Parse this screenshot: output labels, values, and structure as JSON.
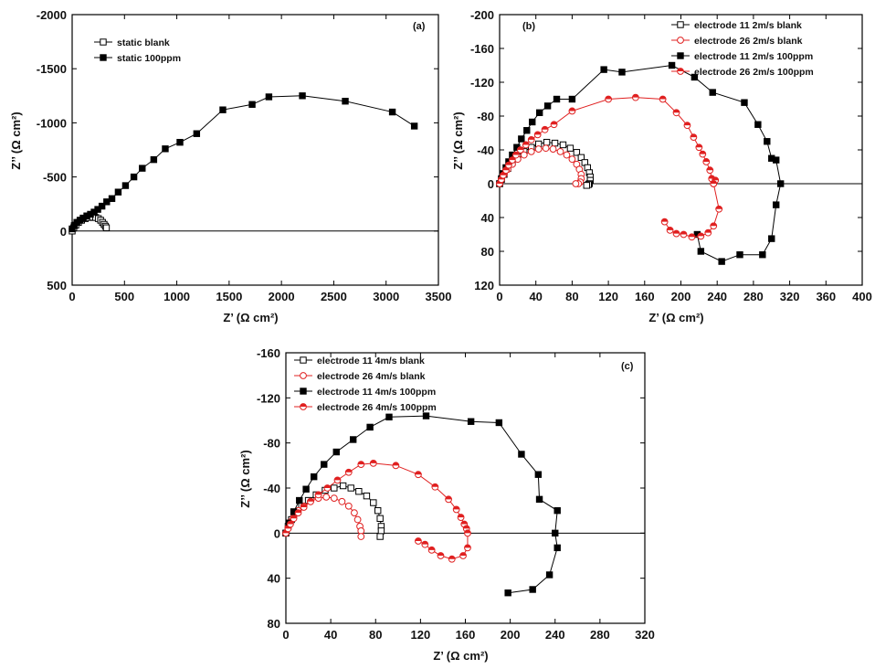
{
  "figure": {
    "background": "#ffffff",
    "axis_color": "#000000"
  },
  "chart_data": [
    {
      "id": "a",
      "type": "line",
      "panel_label": "(a)",
      "xlabel": "Z’ (Ω cm²)",
      "ylabel": "Z’’ (Ω cm²)",
      "xlim": [
        0,
        3500
      ],
      "ylim": [
        -2000,
        500
      ],
      "y_inverted": true,
      "xticks": [
        0,
        500,
        1000,
        1500,
        2000,
        2500,
        3000,
        3500
      ],
      "yticks": [
        -2000,
        -1500,
        -1000,
        -500,
        0,
        500
      ],
      "zero_line": true,
      "legend_position": "top-left",
      "series": [
        {
          "name": "static blank",
          "color": "#000000",
          "marker": "square-open",
          "x": [
            0,
            15,
            35,
            60,
            90,
            125,
            160,
            195,
            225,
            250,
            272,
            290,
            305,
            318,
            327
          ],
          "y": [
            0,
            -30,
            -55,
            -80,
            -100,
            -115,
            -125,
            -128,
            -125,
            -115,
            -100,
            -80,
            -62,
            -45,
            -30
          ]
        },
        {
          "name": "static 100ppm",
          "color": "#000000",
          "marker": "square-filled",
          "x": [
            0,
            20,
            45,
            75,
            105,
            140,
            175,
            210,
            245,
            285,
            330,
            380,
            440,
            510,
            590,
            670,
            780,
            890,
            1030,
            1190,
            1440,
            1720,
            1880,
            2200,
            2610,
            3060,
            3270
          ],
          "y": [
            -20,
            -50,
            -80,
            -100,
            -120,
            -140,
            -155,
            -175,
            -200,
            -230,
            -270,
            -300,
            -360,
            -420,
            -500,
            -580,
            -660,
            -760,
            -820,
            -900,
            -1120,
            -1170,
            -1240,
            -1250,
            -1200,
            -1100,
            -970
          ]
        }
      ]
    },
    {
      "id": "b",
      "type": "line",
      "panel_label": "(b)",
      "xlabel": "Z’ (Ω cm²)",
      "ylabel": "Z’’ (Ω cm²)",
      "xlim": [
        0,
        400
      ],
      "ylim": [
        -200,
        120
      ],
      "y_inverted": true,
      "xticks": [
        0,
        40,
        80,
        120,
        160,
        200,
        240,
        280,
        320,
        360,
        400
      ],
      "yticks": [
        -200,
        -160,
        -120,
        -80,
        -40,
        0,
        40,
        80,
        120
      ],
      "zero_line": true,
      "legend_position": "top-right",
      "series": [
        {
          "name": "electrode 11 2m/s blank",
          "color": "#000000",
          "marker": "square-open",
          "x": [
            0,
            2,
            5,
            9,
            14,
            20,
            27,
            35,
            43,
            52,
            61,
            70,
            78,
            85,
            90,
            94,
            97,
            99,
            100,
            100,
            99,
            98,
            96
          ],
          "y": [
            0,
            -5,
            -11,
            -18,
            -25,
            -32,
            -38,
            -43,
            -47,
            -49,
            -48,
            -46,
            -42,
            -37,
            -31,
            -25,
            -19,
            -13,
            -8,
            -4,
            0,
            1,
            2
          ]
        },
        {
          "name": "electrode 26 2m/s  blank",
          "color": "#e02020",
          "marker": "circle-open",
          "x": [
            0,
            2,
            5,
            9,
            14,
            20,
            27,
            35,
            43,
            51,
            59,
            67,
            74,
            80,
            85,
            88,
            90,
            90,
            89,
            87,
            84
          ],
          "y": [
            0,
            -5,
            -11,
            -17,
            -23,
            -29,
            -34,
            -38,
            -41,
            -42,
            -41,
            -38,
            -34,
            -29,
            -23,
            -17,
            -11,
            -6,
            -2,
            0,
            0
          ]
        },
        {
          "name": "electrode 11 2m/s 100ppm",
          "color": "#000000",
          "marker": "square-filled",
          "x": [
            0,
            2,
            4,
            7,
            10,
            14,
            19,
            24,
            30,
            36,
            44,
            53,
            63,
            80,
            115,
            135,
            190,
            215,
            235,
            270,
            285,
            295,
            300,
            305,
            310,
            305,
            300,
            290,
            265,
            245,
            222,
            218
          ],
          "y": [
            0,
            -6,
            -12,
            -19,
            -26,
            -34,
            -43,
            -53,
            -63,
            -73,
            -84,
            -92,
            -100,
            -100,
            -135,
            -132,
            -140,
            -126,
            -108,
            -96,
            -70,
            -50,
            -30,
            -28,
            0,
            25,
            65,
            84,
            84,
            92,
            80,
            60
          ]
        },
        {
          "name": "electrode 26 2m/s 100ppm",
          "color": "#e02020",
          "marker": "circle-halffilled",
          "x": [
            0,
            2,
            4,
            7,
            10,
            14,
            18,
            23,
            29,
            35,
            42,
            50,
            60,
            80,
            120,
            150,
            180,
            195,
            207,
            214,
            220,
            224,
            228,
            232,
            234,
            236,
            238,
            236,
            242,
            236,
            230,
            222,
            212,
            203,
            195,
            188,
            182
          ],
          "y": [
            0,
            -5,
            -10,
            -16,
            -22,
            -28,
            -34,
            -40,
            -46,
            -52,
            -58,
            -64,
            -70,
            -86,
            -100,
            -102,
            -100,
            -84,
            -69,
            -55,
            -43,
            -35,
            -26,
            -16,
            -6,
            0,
            -4,
            0,
            30,
            50,
            58,
            62,
            63,
            60,
            59,
            55,
            45
          ]
        }
      ]
    },
    {
      "id": "c",
      "type": "line",
      "panel_label": "(c)",
      "xlabel": "Z’ (Ω cm²)",
      "ylabel": "Z’’ (Ω cm²)",
      "xlim": [
        0,
        320
      ],
      "ylim": [
        -160,
        80
      ],
      "y_inverted": true,
      "xticks": [
        0,
        40,
        80,
        120,
        160,
        200,
        240,
        280,
        320
      ],
      "yticks": [
        -160,
        -120,
        -80,
        -40,
        0,
        40,
        80
      ],
      "zero_line": true,
      "legend_position": "top-left",
      "series": [
        {
          "name": "electrode 11 4m/s blank",
          "color": "#000000",
          "marker": "square-open",
          "x": [
            0,
            2,
            5,
            9,
            14,
            20,
            27,
            35,
            43,
            51,
            58,
            65,
            72,
            78,
            82,
            84,
            85,
            85,
            84
          ],
          "y": [
            0,
            -6,
            -12,
            -18,
            -24,
            -29,
            -34,
            -38,
            -40,
            -42,
            -40,
            -37,
            -33,
            -27,
            -20,
            -13,
            -6,
            -2,
            3
          ]
        },
        {
          "name": "electrode 26 4m/s blank",
          "color": "#e02020",
          "marker": "circle-open",
          "x": [
            0,
            2,
            4,
            7,
            11,
            16,
            22,
            29,
            36,
            43,
            50,
            56,
            61,
            64,
            66,
            67,
            67
          ],
          "y": [
            0,
            -5,
            -10,
            -15,
            -20,
            -24,
            -28,
            -31,
            -32,
            -31,
            -28,
            -24,
            -18,
            -12,
            -6,
            -2,
            3
          ]
        },
        {
          "name": "electrode 11 4m/s 100ppm",
          "color": "#000000",
          "marker": "square-filled",
          "x": [
            0,
            3,
            7,
            12,
            18,
            25,
            34,
            45,
            60,
            75,
            92,
            125,
            165,
            190,
            210,
            225,
            226,
            242,
            240,
            242,
            235,
            220,
            198
          ],
          "y": [
            0,
            -9,
            -19,
            -29,
            -39,
            -50,
            -61,
            -72,
            -83,
            -94,
            -103,
            -104,
            -99,
            -98,
            -70,
            -52,
            -30,
            -20,
            0,
            13,
            37,
            50,
            53
          ]
        },
        {
          "name": "electrode 26 4m/s 100ppm",
          "color": "#e02020",
          "marker": "circle-halffilled",
          "x": [
            0,
            2,
            4,
            7,
            11,
            16,
            22,
            29,
            37,
            46,
            56,
            67,
            78,
            98,
            118,
            133,
            145,
            152,
            156,
            159,
            161,
            162,
            162,
            158,
            148,
            138,
            130,
            124,
            118
          ],
          "y": [
            0,
            -4,
            -8,
            -13,
            -18,
            -23,
            -28,
            -34,
            -40,
            -47,
            -54,
            -61,
            -62,
            -60,
            -52,
            -41,
            -30,
            -21,
            -14,
            -8,
            -4,
            0,
            13,
            20,
            23,
            20,
            15,
            10,
            7
          ]
        }
      ]
    }
  ]
}
